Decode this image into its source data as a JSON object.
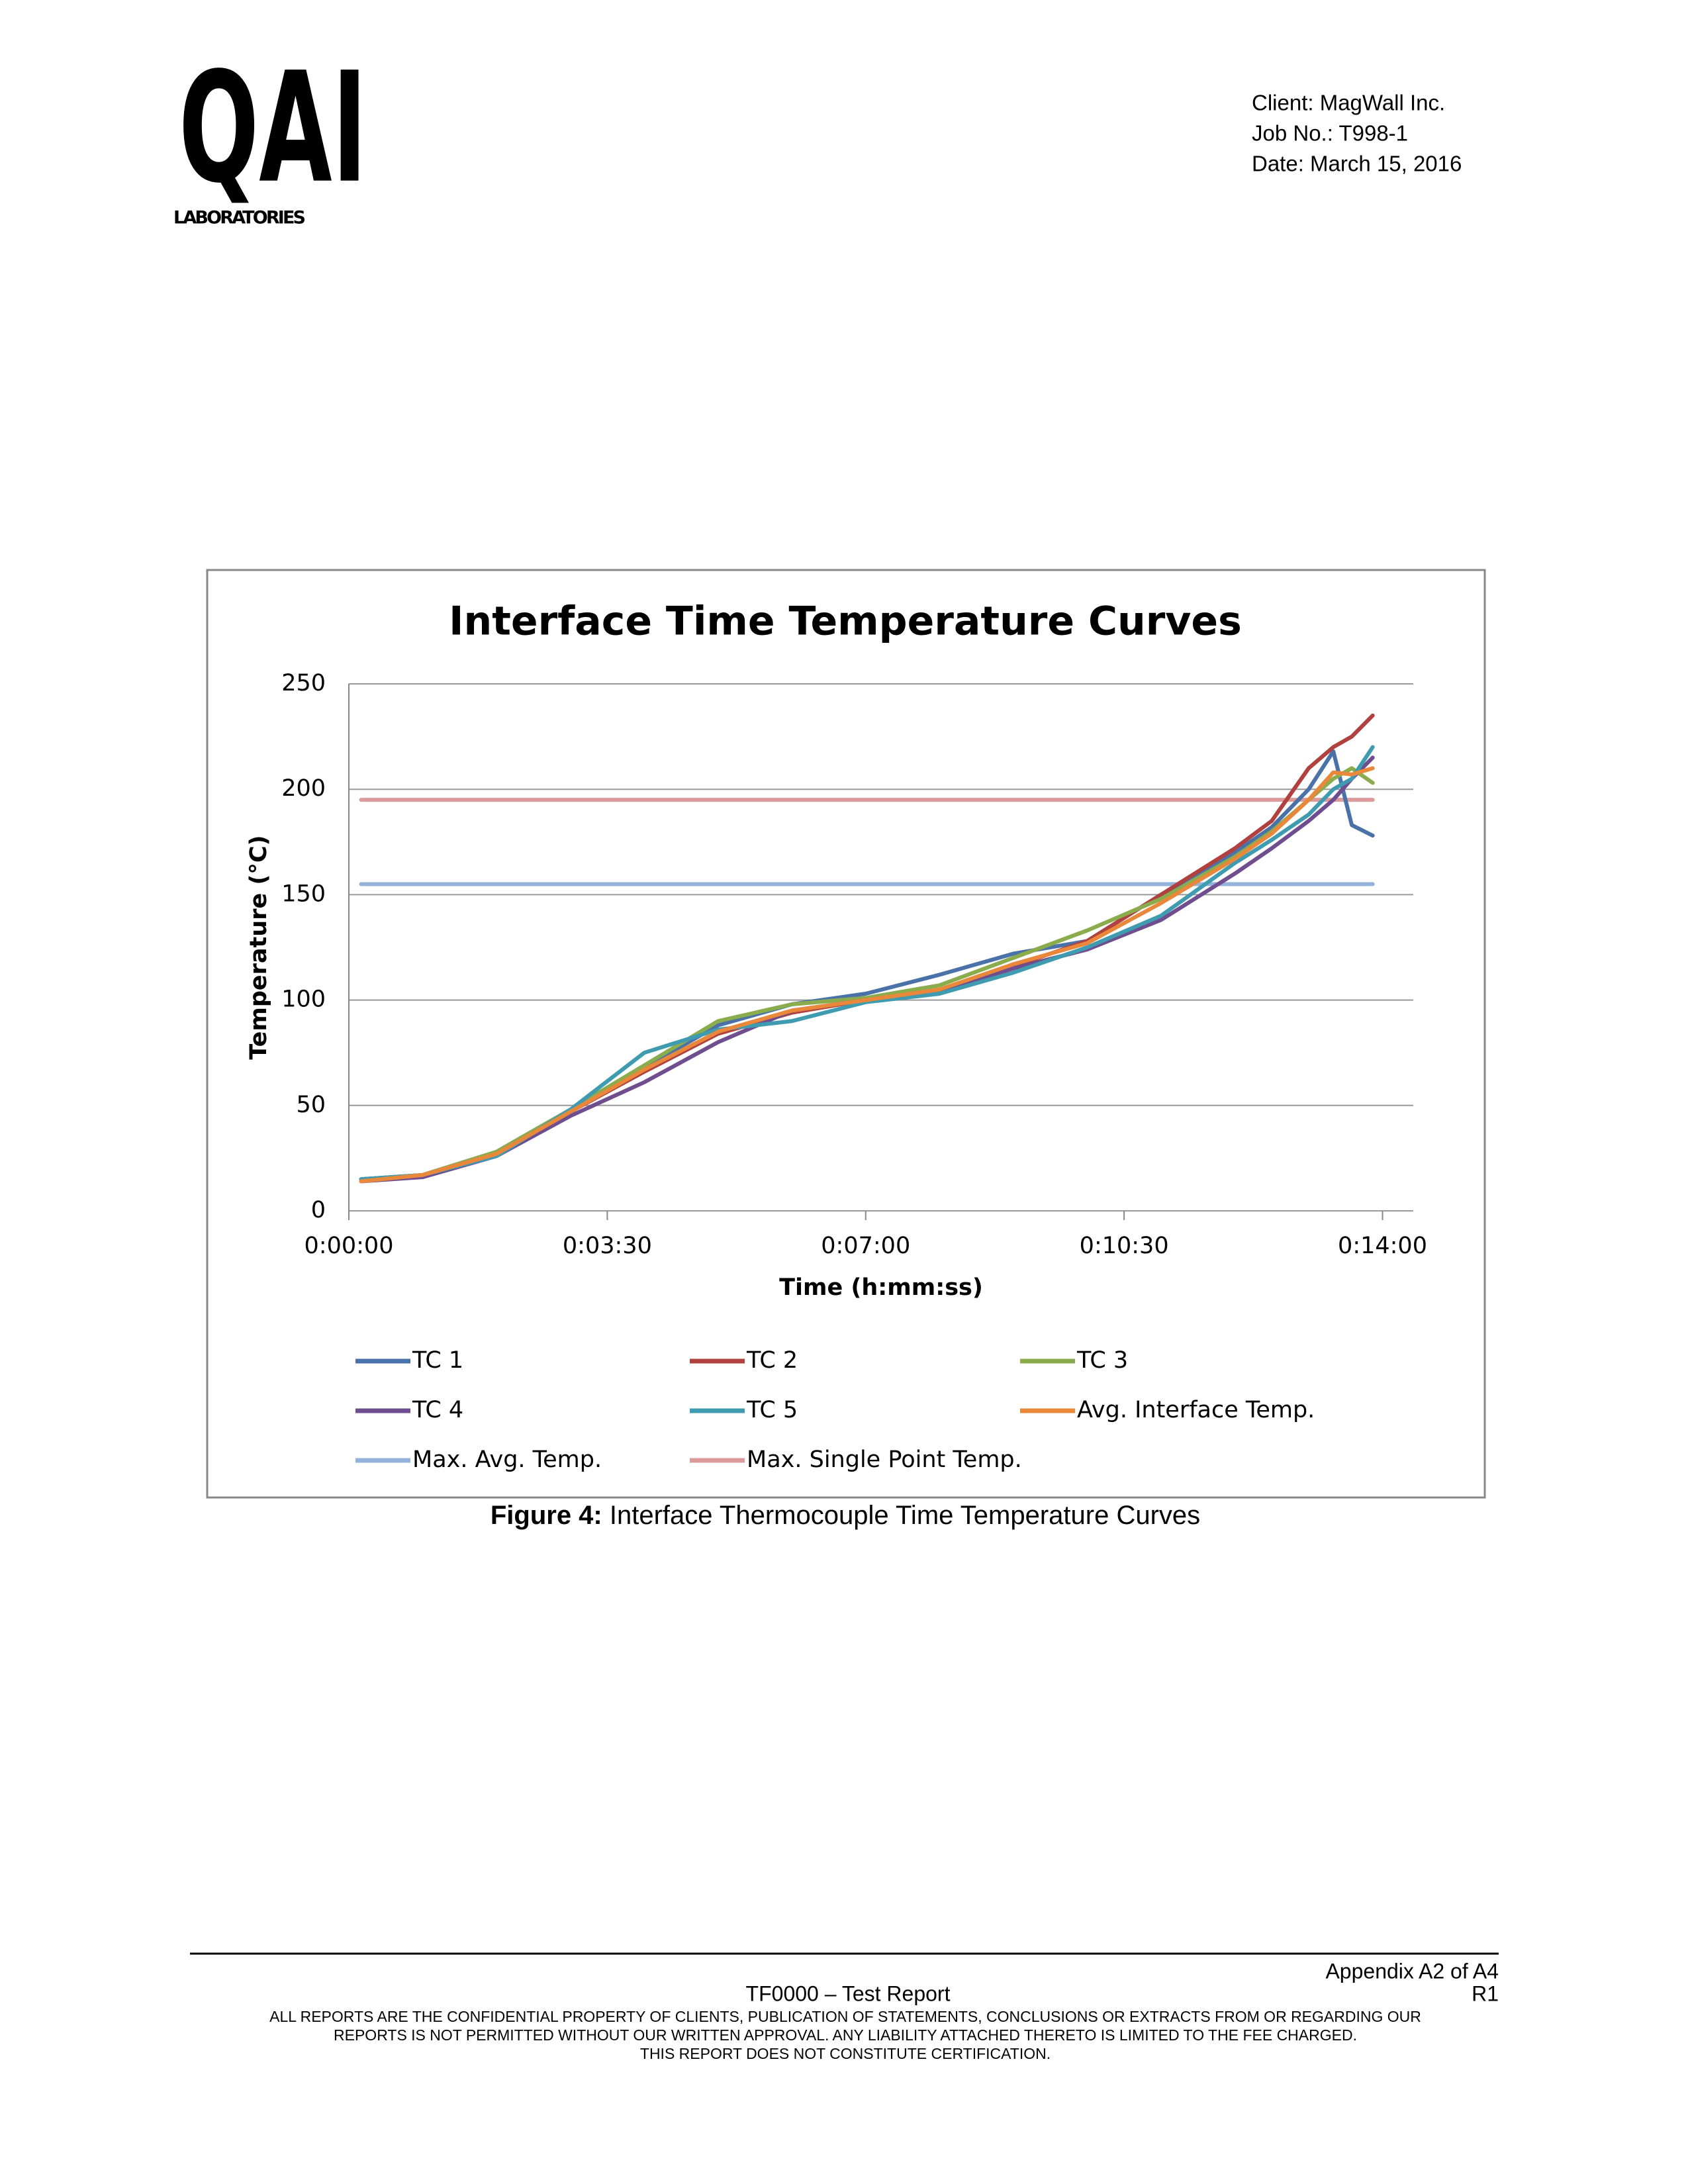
{
  "header": {
    "logo": "QAI",
    "logo_sub": "LABORATORIES",
    "client": "Client: MagWall Inc.",
    "job": "Job No.: T998-1",
    "date": "Date: March 15, 2016"
  },
  "chart_data": {
    "type": "line",
    "title": "Interface Time Temperature Curves",
    "x_label": "Time (h:mm:ss)",
    "y_label": "Temperature (°C)",
    "x": [
      10,
      60,
      120,
      180,
      240,
      300,
      360,
      420,
      480,
      540,
      600,
      660,
      720,
      750,
      780,
      800,
      815,
      832
    ],
    "xlim": [
      0,
      865
    ],
    "xticks": [
      {
        "value": 0,
        "label": "0:00:00"
      },
      {
        "value": 210,
        "label": "0:03:30"
      },
      {
        "value": 420,
        "label": "0:07:00"
      },
      {
        "value": 630,
        "label": "0:10:30"
      },
      {
        "value": 840,
        "label": "0:14:00"
      }
    ],
    "ylim": [
      0,
      250
    ],
    "yticks": [
      0,
      50,
      100,
      150,
      200,
      250
    ],
    "grid": true,
    "series": [
      {
        "name": "TC 1",
        "color": "#4a72a8",
        "values": [
          15,
          17,
          28,
          48,
          68,
          88,
          98,
          103,
          112,
          122,
          128,
          150,
          170,
          182,
          200,
          218,
          183,
          178
        ]
      },
      {
        "name": "TC 2",
        "color": "#b0413e",
        "values": [
          15,
          17,
          27,
          47,
          66,
          84,
          94,
          100,
          105,
          116,
          128,
          150,
          172,
          185,
          210,
          220,
          225,
          235
        ]
      },
      {
        "name": "TC 3",
        "color": "#8aac4c",
        "values": [
          15,
          17,
          28,
          48,
          69,
          90,
          98,
          101,
          107,
          120,
          133,
          148,
          168,
          180,
          195,
          205,
          210,
          203
        ]
      },
      {
        "name": "TC 4",
        "color": "#6f4e8f",
        "values": [
          14,
          16,
          26,
          45,
          61,
          80,
          95,
          100,
          104,
          115,
          124,
          138,
          160,
          172,
          185,
          195,
          205,
          215
        ]
      },
      {
        "name": "TC 5",
        "color": "#3f9cb0",
        "values": [
          15,
          17,
          26,
          48,
          75,
          86,
          90,
          99,
          103,
          113,
          125,
          140,
          165,
          176,
          188,
          200,
          205,
          220
        ]
      },
      {
        "name": "Avg. Interface Temp.",
        "color": "#e9883a",
        "values": [
          14,
          17,
          27,
          47,
          67,
          85,
          95,
          100,
          105,
          117,
          127,
          146,
          167,
          179,
          195,
          208,
          207,
          210
        ]
      },
      {
        "name": "Max. Avg. Temp.",
        "color": "#94b3da",
        "x": [
          10,
          832
        ],
        "values": [
          155,
          155
        ]
      },
      {
        "name": "Max. Single Point Temp.",
        "color": "#dc9a9a",
        "x": [
          10,
          832
        ],
        "values": [
          195,
          195
        ]
      }
    ]
  },
  "caption": {
    "label": "Figure 4:",
    "text": "Interface Thermocouple Time Temperature Curves"
  },
  "footer": {
    "appendix": "Appendix A2 of A4",
    "report": "TF0000 – Test Report",
    "revision": "R1",
    "disclaimer": [
      "ALL REPORTS ARE THE CONFIDENTIAL PROPERTY OF CLIENTS, PUBLICATION OF STATEMENTS, CONCLUSIONS OR EXTRACTS FROM OR REGARDING OUR",
      "REPORTS IS NOT PERMITTED WITHOUT OUR WRITTEN APPROVAL. ANY LIABILITY ATTACHED THERETO IS LIMITED TO THE FEE CHARGED.",
      "THIS REPORT DOES NOT CONSTITUTE CERTIFICATION."
    ]
  }
}
